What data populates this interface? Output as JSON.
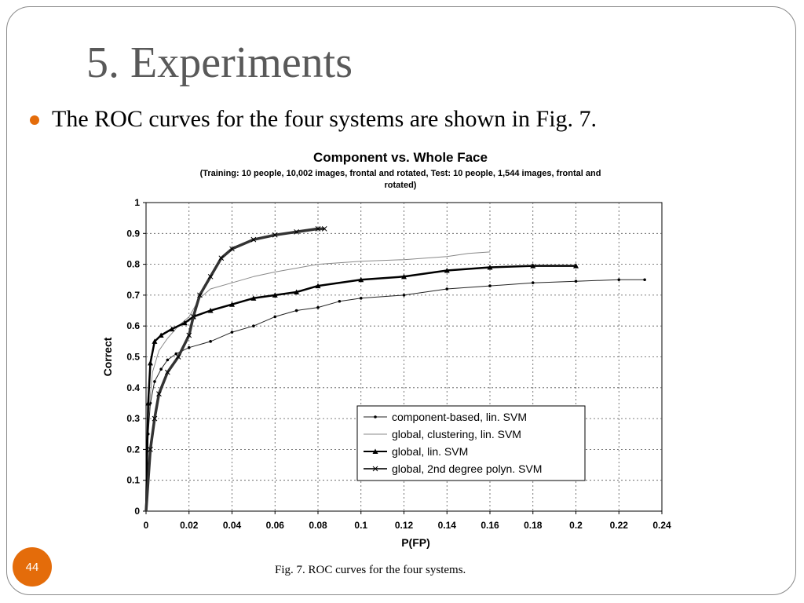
{
  "slide": {
    "title": "5. Experiments",
    "bullet": "The ROC curves for the four systems are shown in Fig. 7.",
    "caption": "Fig.  7.  ROC curves for the four systems.",
    "page_number": "44",
    "accent_color": "#e46c0a"
  },
  "chart_data": {
    "type": "line",
    "title": "Component vs. Whole Face",
    "subtitle_lines": [
      "(Training: 10 people, 10,002  images, frontal and rotated, Test: 10 people, 1,544 images, frontal and",
      "rotated)"
    ],
    "xlabel": "P(FP)",
    "ylabel": "Correct",
    "xlim": [
      0,
      0.24
    ],
    "ylim": [
      0,
      1
    ],
    "xticks": [
      "0",
      "0.02",
      "0.04",
      "0.06",
      "0.08",
      "0.1",
      "0.12",
      "0.14",
      "0.16",
      "0.18",
      "0.2",
      "0.22",
      "0.24"
    ],
    "yticks": [
      "0",
      "0.1",
      "0.2",
      "0.3",
      "0.4",
      "0.5",
      "0.6",
      "0.7",
      "0.8",
      "0.9",
      "1"
    ],
    "grid": true,
    "legend_position": "bottom-right",
    "series": [
      {
        "name": "component-based, lin. SVM",
        "marker": "dot",
        "points": [
          [
            0,
            0
          ],
          [
            0.001,
            0.25
          ],
          [
            0.002,
            0.35
          ],
          [
            0.004,
            0.42
          ],
          [
            0.007,
            0.46
          ],
          [
            0.01,
            0.49
          ],
          [
            0.014,
            0.51
          ],
          [
            0.02,
            0.53
          ],
          [
            0.03,
            0.55
          ],
          [
            0.04,
            0.58
          ],
          [
            0.05,
            0.6
          ],
          [
            0.06,
            0.63
          ],
          [
            0.07,
            0.65
          ],
          [
            0.08,
            0.66
          ],
          [
            0.09,
            0.68
          ],
          [
            0.1,
            0.69
          ],
          [
            0.12,
            0.7
          ],
          [
            0.14,
            0.72
          ],
          [
            0.16,
            0.73
          ],
          [
            0.18,
            0.74
          ],
          [
            0.2,
            0.745
          ],
          [
            0.22,
            0.75
          ],
          [
            0.232,
            0.75
          ]
        ]
      },
      {
        "name": "global, clustering, lin. SVM",
        "marker": "none",
        "points": [
          [
            0,
            0
          ],
          [
            0.001,
            0.3
          ],
          [
            0.003,
            0.45
          ],
          [
            0.006,
            0.52
          ],
          [
            0.01,
            0.56
          ],
          [
            0.015,
            0.6
          ],
          [
            0.02,
            0.63
          ],
          [
            0.025,
            0.69
          ],
          [
            0.03,
            0.72
          ],
          [
            0.04,
            0.74
          ],
          [
            0.05,
            0.76
          ],
          [
            0.06,
            0.775
          ],
          [
            0.08,
            0.8
          ],
          [
            0.1,
            0.81
          ],
          [
            0.12,
            0.815
          ],
          [
            0.14,
            0.825
          ],
          [
            0.15,
            0.835
          ],
          [
            0.16,
            0.84
          ]
        ]
      },
      {
        "name": "global, lin. SVM",
        "marker": "triangle",
        "points": [
          [
            0,
            0
          ],
          [
            0.001,
            0.35
          ],
          [
            0.002,
            0.48
          ],
          [
            0.004,
            0.55
          ],
          [
            0.007,
            0.57
          ],
          [
            0.012,
            0.59
          ],
          [
            0.018,
            0.61
          ],
          [
            0.022,
            0.63
          ],
          [
            0.03,
            0.65
          ],
          [
            0.04,
            0.67
          ],
          [
            0.05,
            0.69
          ],
          [
            0.06,
            0.7
          ],
          [
            0.07,
            0.71
          ],
          [
            0.08,
            0.73
          ],
          [
            0.1,
            0.75
          ],
          [
            0.12,
            0.76
          ],
          [
            0.14,
            0.78
          ],
          [
            0.16,
            0.79
          ],
          [
            0.18,
            0.795
          ],
          [
            0.2,
            0.795
          ]
        ]
      },
      {
        "name": "global, 2nd degree polyn. SVM",
        "marker": "cross",
        "points": [
          [
            0,
            0
          ],
          [
            0.002,
            0.2
          ],
          [
            0.004,
            0.3
          ],
          [
            0.006,
            0.38
          ],
          [
            0.01,
            0.45
          ],
          [
            0.015,
            0.5
          ],
          [
            0.02,
            0.57
          ],
          [
            0.022,
            0.63
          ],
          [
            0.025,
            0.7
          ],
          [
            0.03,
            0.76
          ],
          [
            0.035,
            0.82
          ],
          [
            0.04,
            0.85
          ],
          [
            0.05,
            0.88
          ],
          [
            0.06,
            0.895
          ],
          [
            0.07,
            0.905
          ],
          [
            0.08,
            0.915
          ],
          [
            0.083,
            0.915
          ]
        ]
      }
    ]
  }
}
